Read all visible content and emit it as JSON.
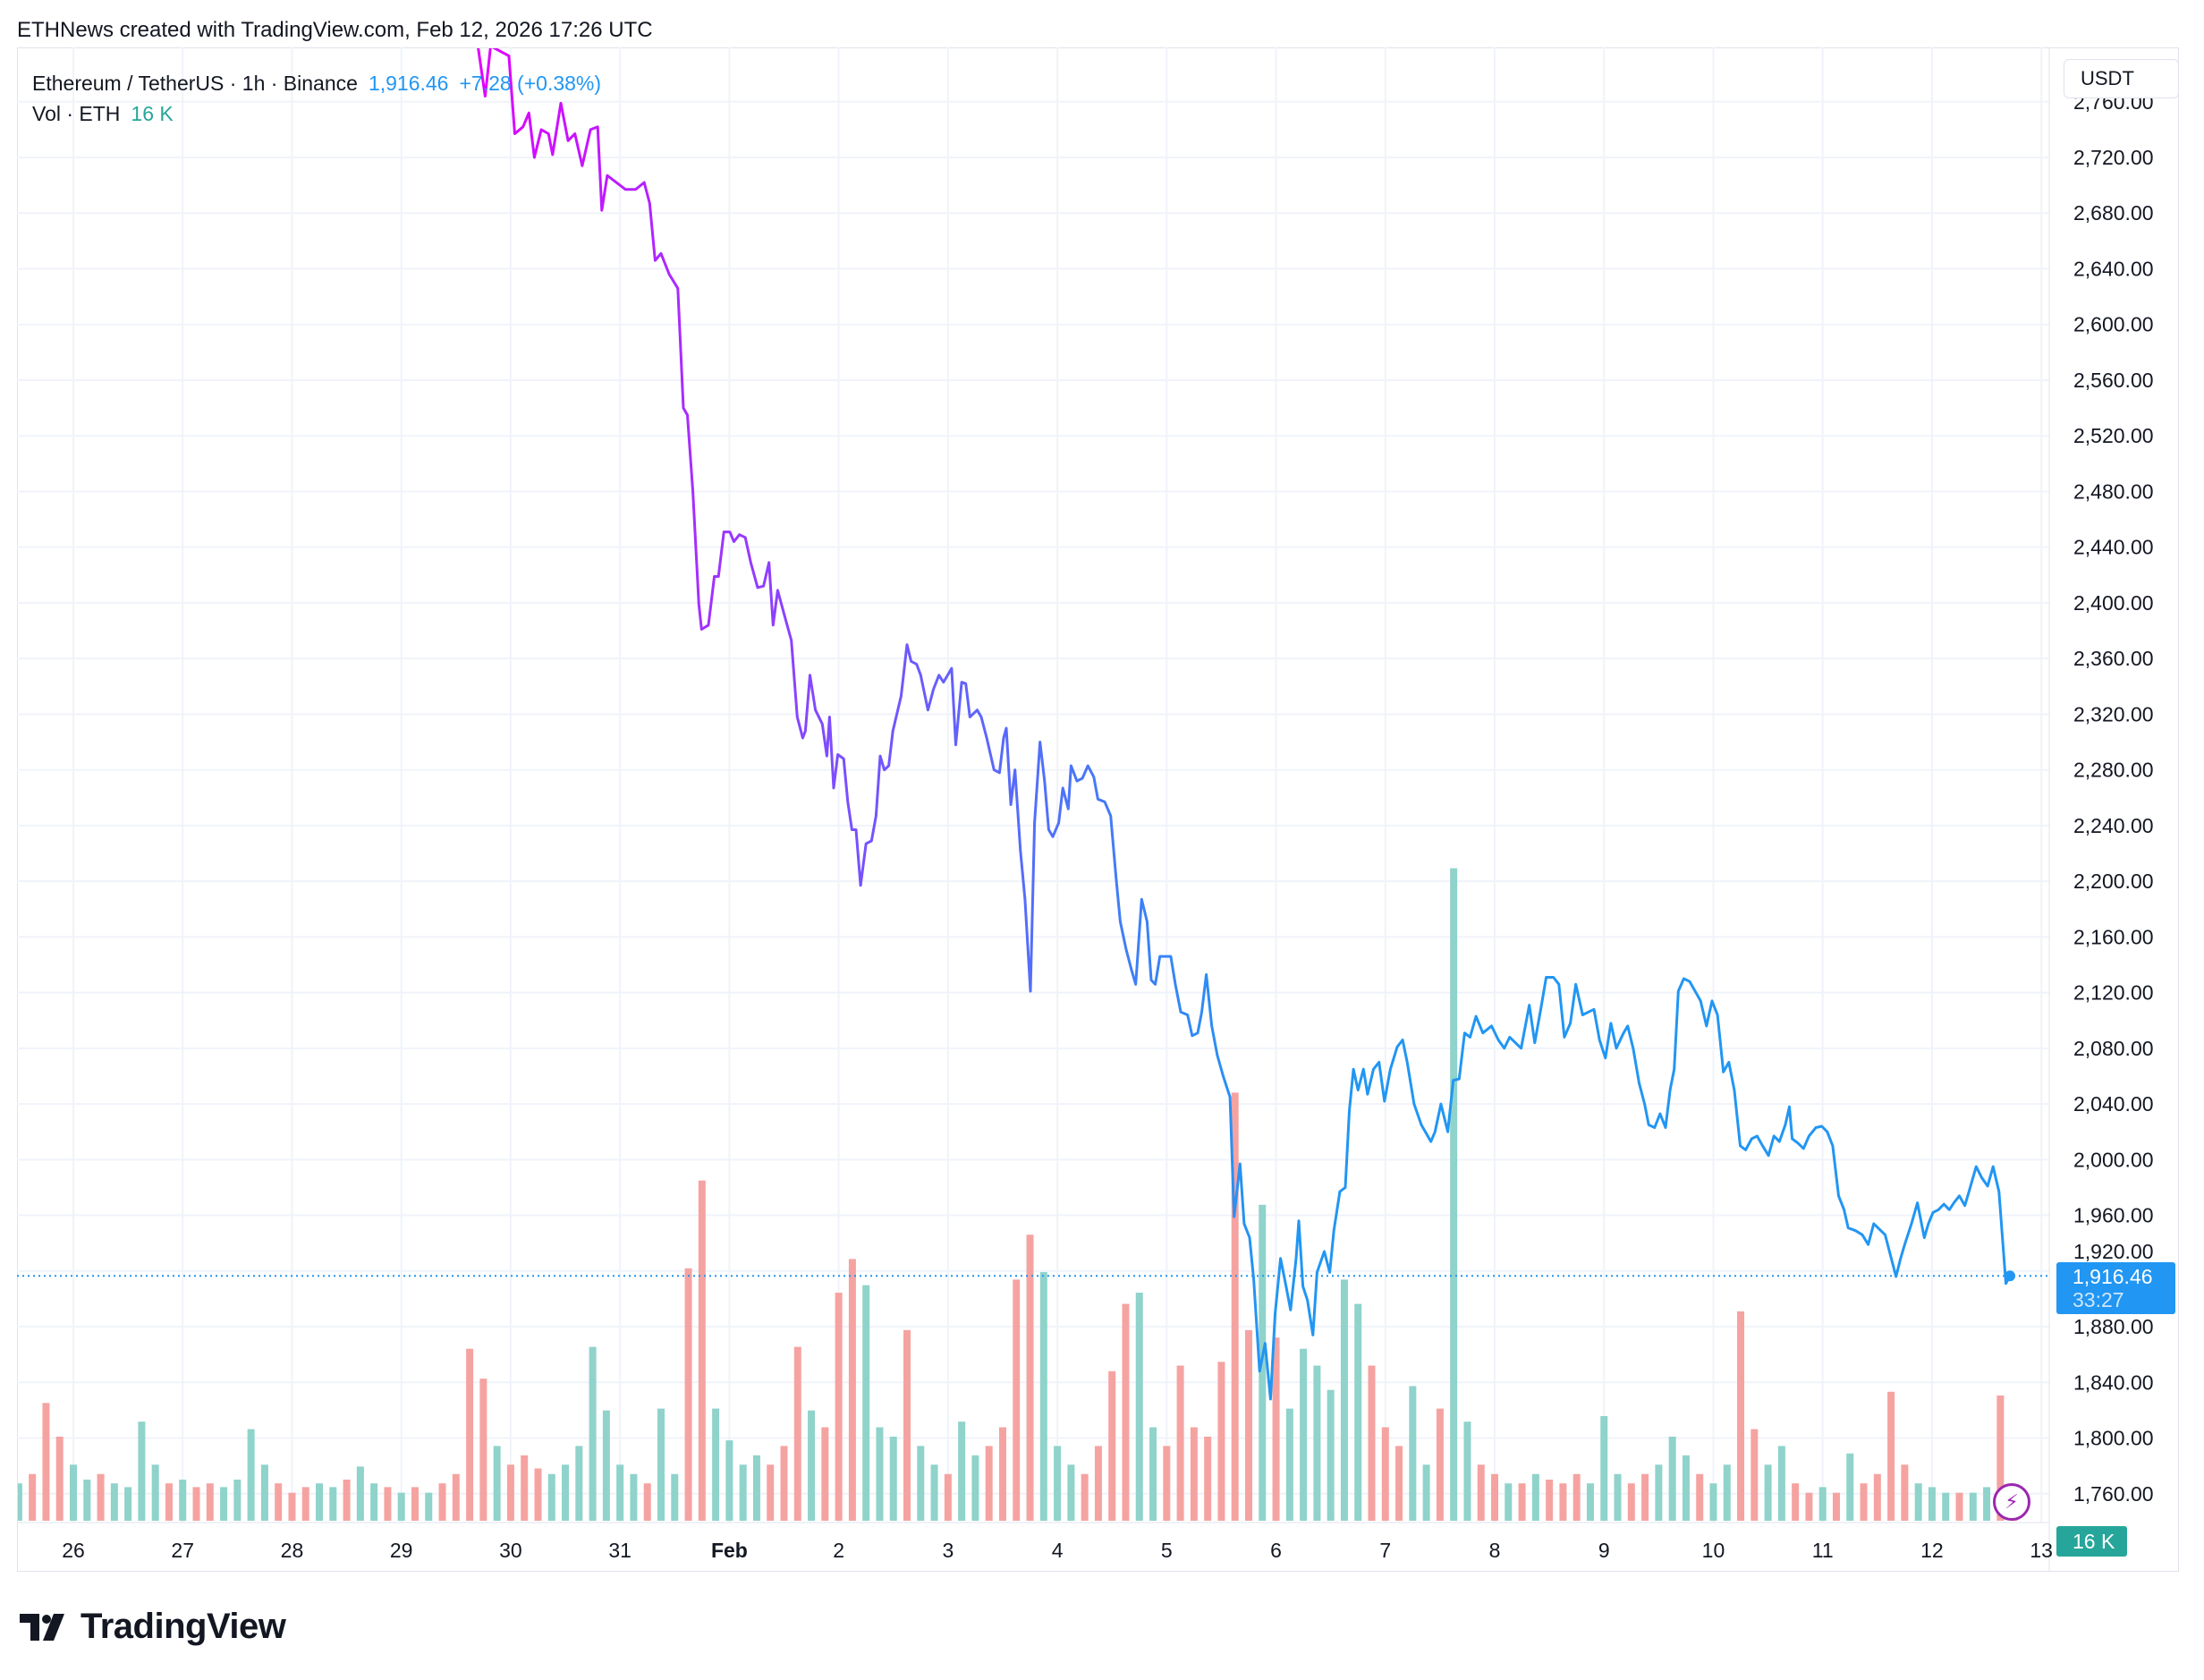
{
  "attribution": "ETHNews created with TradingView.com, Feb 12, 2026 17:26 UTC",
  "legend": {
    "symbol": "Ethereum / TetherUS · 1h · Binance",
    "last_price": "1,916.46",
    "change": "+7.28 (+0.38%)",
    "volume_label": "Vol · ETH",
    "volume_value": "16 K"
  },
  "currency_button": "USDT",
  "price_badge": {
    "price": "1,916.46",
    "countdown": "33:27"
  },
  "volume_badge": "16 K",
  "logo_text": "TradingView",
  "colors": {
    "line_start": "#e100ff",
    "line_mid": "#7c4dff",
    "line_end": "#2196f3",
    "up": "#26a69a",
    "down": "#ef5350"
  },
  "chart_data": {
    "type": "line",
    "title": "Ethereum / TetherUS · 1h · Binance",
    "x_unit": "hours since Jan 26 00:00 UTC",
    "ylabel": "USDT",
    "ylim": [
      1740,
      2780
    ],
    "grid": true,
    "y_ticks": [
      "1,760.00",
      "1,800.00",
      "1,840.00",
      "1,880.00",
      "1,920.00",
      "1,960.00",
      "2,000.00",
      "2,040.00",
      "2,080.00",
      "2,120.00",
      "2,160.00",
      "2,200.00",
      "2,240.00",
      "2,280.00",
      "2,320.00",
      "2,360.00",
      "2,400.00",
      "2,440.00",
      "2,480.00",
      "2,520.00",
      "2,560.00",
      "2,600.00",
      "2,640.00",
      "2,680.00",
      "2,720.00",
      "2,760.00"
    ],
    "y_tick_values": [
      1760,
      1800,
      1840,
      1880,
      1920,
      1960,
      2000,
      2040,
      2080,
      2120,
      2160,
      2200,
      2240,
      2280,
      2320,
      2360,
      2400,
      2440,
      2480,
      2520,
      2560,
      2600,
      2640,
      2680,
      2720,
      2760
    ],
    "x_ticks": [
      "26",
      "27",
      "28",
      "29",
      "30",
      "31",
      "Feb",
      "2",
      "3",
      "4",
      "5",
      "6",
      "7",
      "8",
      "9",
      "10",
      "11",
      "12",
      "13"
    ],
    "current_price": 1916.46,
    "price": [
      [
        88.8,
        2800
      ],
      [
        90.4,
        2764
      ],
      [
        91.6,
        2800
      ],
      [
        95.6,
        2793
      ],
      [
        96.9,
        2737
      ],
      [
        98.7,
        2742
      ],
      [
        100.0,
        2752
      ],
      [
        101.2,
        2720
      ],
      [
        102.7,
        2740
      ],
      [
        104.3,
        2737
      ],
      [
        105.2,
        2722
      ],
      [
        107.0,
        2759
      ],
      [
        108.6,
        2732
      ],
      [
        110.1,
        2737
      ],
      [
        111.7,
        2714
      ],
      [
        113.5,
        2740
      ],
      [
        115.1,
        2742
      ],
      [
        116.0,
        2682
      ],
      [
        117.2,
        2707
      ],
      [
        121.2,
        2697
      ],
      [
        123.4,
        2697
      ],
      [
        125.3,
        2702
      ],
      [
        126.5,
        2687
      ],
      [
        127.7,
        2646
      ],
      [
        129.0,
        2651
      ],
      [
        130.8,
        2636
      ],
      [
        132.7,
        2626
      ],
      [
        133.9,
        2540
      ],
      [
        134.8,
        2535
      ],
      [
        136.0,
        2480
      ],
      [
        137.3,
        2399
      ],
      [
        137.9,
        2381
      ],
      [
        139.4,
        2384
      ],
      [
        140.7,
        2419
      ],
      [
        141.6,
        2419
      ],
      [
        142.8,
        2451
      ],
      [
        144.1,
        2451
      ],
      [
        145.0,
        2444
      ],
      [
        146.2,
        2449
      ],
      [
        147.5,
        2447
      ],
      [
        148.7,
        2429
      ],
      [
        150.2,
        2411
      ],
      [
        151.5,
        2412
      ],
      [
        152.7,
        2429
      ],
      [
        153.6,
        2384
      ],
      [
        154.6,
        2409
      ],
      [
        156.1,
        2391
      ],
      [
        157.6,
        2373
      ],
      [
        158.9,
        2318
      ],
      [
        160.1,
        2303
      ],
      [
        160.7,
        2308
      ],
      [
        161.7,
        2348
      ],
      [
        162.9,
        2323
      ],
      [
        164.4,
        2313
      ],
      [
        165.4,
        2290
      ],
      [
        166.0,
        2318
      ],
      [
        166.9,
        2267
      ],
      [
        167.8,
        2291
      ],
      [
        169.1,
        2288
      ],
      [
        170.0,
        2257
      ],
      [
        170.9,
        2237
      ],
      [
        171.8,
        2237
      ],
      [
        172.8,
        2197
      ],
      [
        174.0,
        2227
      ],
      [
        175.2,
        2229
      ],
      [
        176.2,
        2247
      ],
      [
        177.1,
        2290
      ],
      [
        178.0,
        2280
      ],
      [
        179.0,
        2283
      ],
      [
        179.9,
        2308
      ],
      [
        181.7,
        2333
      ],
      [
        183.0,
        2370
      ],
      [
        183.9,
        2358
      ],
      [
        185.1,
        2356
      ],
      [
        186.0,
        2348
      ],
      [
        187.6,
        2323
      ],
      [
        188.8,
        2338
      ],
      [
        190.0,
        2348
      ],
      [
        191.0,
        2343
      ],
      [
        192.8,
        2353
      ],
      [
        193.7,
        2298
      ],
      [
        195.0,
        2343
      ],
      [
        195.9,
        2342
      ],
      [
        196.8,
        2318
      ],
      [
        198.4,
        2323
      ],
      [
        199.3,
        2318
      ],
      [
        200.5,
        2303
      ],
      [
        202.1,
        2280
      ],
      [
        203.3,
        2278
      ],
      [
        204.2,
        2303
      ],
      [
        204.8,
        2310
      ],
      [
        205.8,
        2255
      ],
      [
        206.7,
        2280
      ],
      [
        207.9,
        2222
      ],
      [
        208.9,
        2187
      ],
      [
        210.1,
        2121
      ],
      [
        211.0,
        2242
      ],
      [
        212.2,
        2300
      ],
      [
        213.2,
        2272
      ],
      [
        214.1,
        2237
      ],
      [
        215.0,
        2232
      ],
      [
        216.3,
        2242
      ],
      [
        217.2,
        2267
      ],
      [
        218.4,
        2252
      ],
      [
        219.0,
        2283
      ],
      [
        220.3,
        2272
      ],
      [
        221.5,
        2274
      ],
      [
        222.7,
        2283
      ],
      [
        224.0,
        2275
      ],
      [
        224.9,
        2259
      ],
      [
        226.4,
        2257
      ],
      [
        227.7,
        2247
      ],
      [
        228.9,
        2202
      ],
      [
        229.8,
        2171
      ],
      [
        231.1,
        2151
      ],
      [
        232.3,
        2136
      ],
      [
        233.2,
        2126
      ],
      [
        234.5,
        2187
      ],
      [
        235.7,
        2171
      ],
      [
        236.6,
        2129
      ],
      [
        237.5,
        2126
      ],
      [
        238.5,
        2146
      ],
      [
        240.9,
        2146
      ],
      [
        241.9,
        2126
      ],
      [
        243.1,
        2106
      ],
      [
        244.6,
        2104
      ],
      [
        245.6,
        2089
      ],
      [
        246.8,
        2091
      ],
      [
        247.7,
        2106
      ],
      [
        248.7,
        2133
      ],
      [
        249.9,
        2096
      ],
      [
        251.1,
        2075
      ],
      [
        252.4,
        2060
      ],
      [
        253.9,
        2045
      ],
      [
        254.8,
        1959
      ],
      [
        256.1,
        1997
      ],
      [
        257.0,
        1954
      ],
      [
        258.2,
        1944
      ],
      [
        259.1,
        1914
      ],
      [
        260.4,
        1848
      ],
      [
        261.6,
        1868
      ],
      [
        262.8,
        1828
      ],
      [
        263.8,
        1889
      ],
      [
        265.0,
        1929
      ],
      [
        266.2,
        1909
      ],
      [
        267.2,
        1892
      ],
      [
        268.4,
        1929
      ],
      [
        269.0,
        1956
      ],
      [
        269.9,
        1909
      ],
      [
        270.9,
        1899
      ],
      [
        272.1,
        1874
      ],
      [
        273.0,
        1919
      ],
      [
        274.6,
        1934
      ],
      [
        275.8,
        1919
      ],
      [
        276.7,
        1949
      ],
      [
        278.0,
        1977
      ],
      [
        279.2,
        1980
      ],
      [
        280.1,
        2035
      ],
      [
        281.0,
        2065
      ],
      [
        282.0,
        2050
      ],
      [
        283.2,
        2065
      ],
      [
        284.1,
        2047
      ],
      [
        285.4,
        2065
      ],
      [
        286.6,
        2070
      ],
      [
        287.8,
        2042
      ],
      [
        289.1,
        2065
      ],
      [
        290.6,
        2081
      ],
      [
        291.8,
        2086
      ],
      [
        292.8,
        2070
      ],
      [
        294.3,
        2040
      ],
      [
        295.9,
        2025
      ],
      [
        298.0,
        2013
      ],
      [
        298.9,
        2020
      ],
      [
        300.2,
        2040
      ],
      [
        301.7,
        2020
      ],
      [
        302.9,
        2057
      ],
      [
        304.2,
        2058
      ],
      [
        305.4,
        2091
      ],
      [
        306.6,
        2088
      ],
      [
        307.9,
        2103
      ],
      [
        309.4,
        2091
      ],
      [
        311.3,
        2096
      ],
      [
        312.8,
        2086
      ],
      [
        314.1,
        2080
      ],
      [
        315.3,
        2088
      ],
      [
        317.8,
        2080
      ],
      [
        319.6,
        2111
      ],
      [
        320.8,
        2084
      ],
      [
        322.1,
        2108
      ],
      [
        323.3,
        2131
      ],
      [
        324.9,
        2131
      ],
      [
        326.1,
        2126
      ],
      [
        327.3,
        2088
      ],
      [
        328.6,
        2098
      ],
      [
        329.8,
        2126
      ],
      [
        331.3,
        2104
      ],
      [
        333.8,
        2108
      ],
      [
        335.0,
        2086
      ],
      [
        336.3,
        2073
      ],
      [
        337.5,
        2098
      ],
      [
        338.7,
        2080
      ],
      [
        340.3,
        2091
      ],
      [
        341.2,
        2096
      ],
      [
        342.4,
        2080
      ],
      [
        343.7,
        2055
      ],
      [
        344.9,
        2040
      ],
      [
        345.8,
        2025
      ],
      [
        347.1,
        2023
      ],
      [
        348.3,
        2033
      ],
      [
        349.5,
        2023
      ],
      [
        350.5,
        2050
      ],
      [
        351.4,
        2065
      ],
      [
        352.3,
        2121
      ],
      [
        353.5,
        2130
      ],
      [
        354.8,
        2128
      ],
      [
        356.0,
        2121
      ],
      [
        357.2,
        2114
      ],
      [
        358.5,
        2096
      ],
      [
        359.7,
        2114
      ],
      [
        360.9,
        2104
      ],
      [
        362.2,
        2063
      ],
      [
        363.4,
        2070
      ],
      [
        364.6,
        2050
      ],
      [
        365.9,
        2010
      ],
      [
        367.1,
        2007
      ],
      [
        368.4,
        2015
      ],
      [
        369.6,
        2017
      ],
      [
        370.8,
        2010
      ],
      [
        372.1,
        2003
      ],
      [
        373.3,
        2017
      ],
      [
        374.5,
        2013
      ],
      [
        375.8,
        2025
      ],
      [
        376.7,
        2038
      ],
      [
        377.3,
        2015
      ],
      [
        378.5,
        2012
      ],
      [
        379.8,
        2008
      ],
      [
        381.0,
        2017
      ],
      [
        382.5,
        2023
      ],
      [
        383.8,
        2024
      ],
      [
        385.0,
        2020
      ],
      [
        386.2,
        2010
      ],
      [
        387.5,
        1974
      ],
      [
        388.7,
        1964
      ],
      [
        389.6,
        1951
      ],
      [
        391.2,
        1949
      ],
      [
        392.7,
        1946
      ],
      [
        394.0,
        1939
      ],
      [
        395.2,
        1954
      ],
      [
        397.7,
        1946
      ],
      [
        398.9,
        1931
      ],
      [
        400.1,
        1916
      ],
      [
        401.1,
        1929
      ],
      [
        402.0,
        1939
      ],
      [
        403.5,
        1954
      ],
      [
        404.8,
        1969
      ],
      [
        406.3,
        1944
      ],
      [
        407.2,
        1954
      ],
      [
        408.2,
        1962
      ],
      [
        409.4,
        1964
      ],
      [
        410.6,
        1968
      ],
      [
        411.8,
        1964
      ],
      [
        412.8,
        1969
      ],
      [
        414.0,
        1974
      ],
      [
        415.2,
        1967
      ],
      [
        416.2,
        1978
      ],
      [
        417.7,
        1995
      ],
      [
        418.9,
        1987
      ],
      [
        420.2,
        1981
      ],
      [
        421.4,
        1995
      ],
      [
        422.7,
        1977
      ],
      [
        424.2,
        1911
      ],
      [
        425.1,
        1916.46
      ]
    ],
    "volume_start_hour": -12,
    "volume_step_hours": 3,
    "volume_unit": "K ETH",
    "volume": [
      20,
      25,
      63,
      45,
      30,
      22,
      25,
      20,
      18,
      53,
      30,
      20,
      22,
      18,
      20,
      18,
      22,
      49,
      30,
      20,
      15,
      18,
      20,
      18,
      22,
      29,
      20,
      18,
      15,
      18,
      15,
      20,
      25,
      92,
      76,
      40,
      30,
      35,
      28,
      25,
      30,
      40,
      93,
      59,
      30,
      25,
      20,
      60,
      25,
      135,
      182,
      60,
      43,
      30,
      35,
      30,
      40,
      93,
      59,
      50,
      122,
      140,
      126,
      50,
      45,
      102,
      40,
      30,
      25,
      53,
      35,
      40,
      50,
      129,
      153,
      133,
      40,
      30,
      25,
      40,
      80,
      116,
      122,
      50,
      40,
      83,
      50,
      45,
      85,
      229,
      102,
      169,
      98,
      60,
      92,
      83,
      70,
      129,
      116,
      83,
      50,
      40,
      72,
      30,
      60,
      349,
      53,
      30,
      25,
      20,
      20,
      25,
      22,
      20,
      25,
      20,
      56,
      25,
      20,
      25,
      30,
      45,
      35,
      25,
      20,
      30,
      112,
      49,
      30,
      40,
      20,
      15,
      18,
      15,
      36,
      20,
      25,
      69,
      30,
      20,
      18,
      15,
      15,
      15,
      18,
      67,
      16
    ],
    "volume_direction": "uddduuduuuududduuuuddduuduudududddduddduuuuuuuduudduuuuddduddduuuduuduudddduuudddduuddddddduduuuuuuddduuduuddududdduuudduuuduudduuddududddduuuduudd"
  }
}
